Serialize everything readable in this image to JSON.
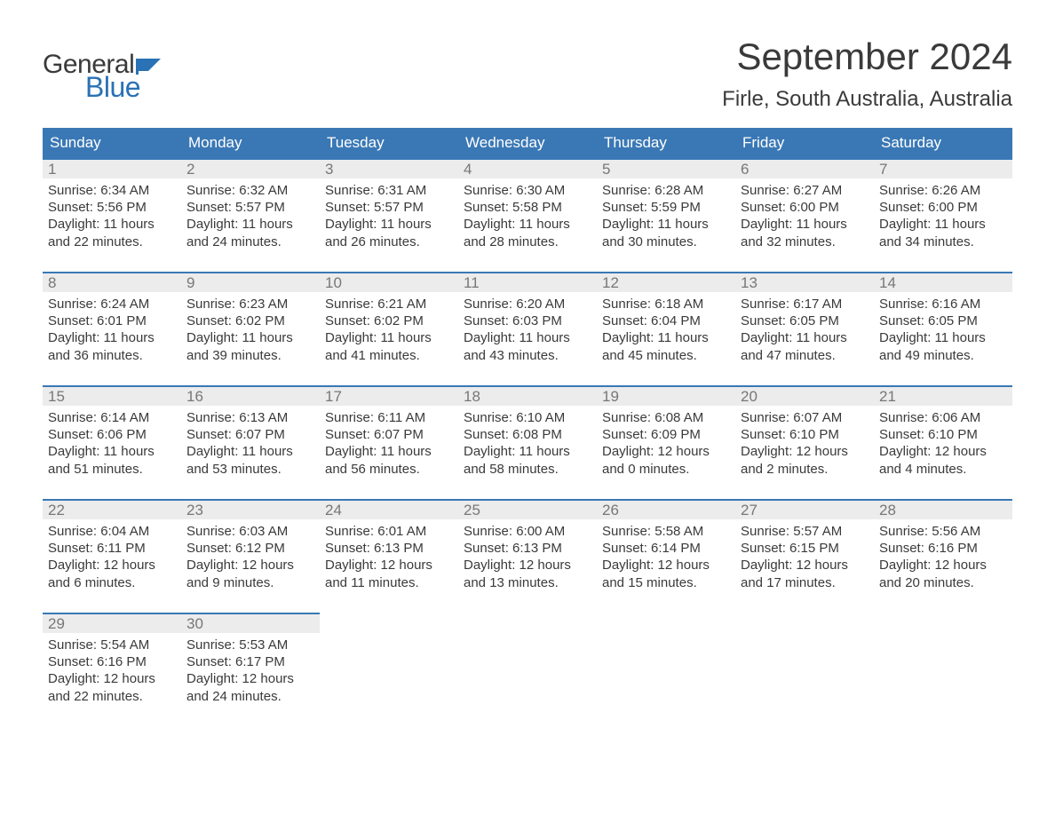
{
  "logo": {
    "word1": "General",
    "word2": "Blue",
    "flag_color": "#2a72b5"
  },
  "header": {
    "month_title": "September 2024",
    "location": "Firle, South Australia, Australia"
  },
  "colors": {
    "header_bg": "#3a78b5",
    "header_text": "#ffffff",
    "daynum_bg": "#ececec",
    "daynum_border": "#3a78b5",
    "daynum_text": "#777777",
    "body_text": "#3a3a3a",
    "page_bg": "#ffffff",
    "logo_blue": "#2a72b5"
  },
  "typography": {
    "month_fontsize_pt": 32,
    "location_fontsize_pt": 18,
    "weekday_fontsize_pt": 13,
    "daynum_fontsize_pt": 13,
    "body_fontsize_pt": 11,
    "font_family": "Arial"
  },
  "calendar": {
    "type": "table",
    "columns": [
      "Sunday",
      "Monday",
      "Tuesday",
      "Wednesday",
      "Thursday",
      "Friday",
      "Saturday"
    ],
    "weeks": [
      [
        {
          "day": "1",
          "sunrise": "Sunrise: 6:34 AM",
          "sunset": "Sunset: 5:56 PM",
          "daylight": "Daylight: 11 hours and 22 minutes."
        },
        {
          "day": "2",
          "sunrise": "Sunrise: 6:32 AM",
          "sunset": "Sunset: 5:57 PM",
          "daylight": "Daylight: 11 hours and 24 minutes."
        },
        {
          "day": "3",
          "sunrise": "Sunrise: 6:31 AM",
          "sunset": "Sunset: 5:57 PM",
          "daylight": "Daylight: 11 hours and 26 minutes."
        },
        {
          "day": "4",
          "sunrise": "Sunrise: 6:30 AM",
          "sunset": "Sunset: 5:58 PM",
          "daylight": "Daylight: 11 hours and 28 minutes."
        },
        {
          "day": "5",
          "sunrise": "Sunrise: 6:28 AM",
          "sunset": "Sunset: 5:59 PM",
          "daylight": "Daylight: 11 hours and 30 minutes."
        },
        {
          "day": "6",
          "sunrise": "Sunrise: 6:27 AM",
          "sunset": "Sunset: 6:00 PM",
          "daylight": "Daylight: 11 hours and 32 minutes."
        },
        {
          "day": "7",
          "sunrise": "Sunrise: 6:26 AM",
          "sunset": "Sunset: 6:00 PM",
          "daylight": "Daylight: 11 hours and 34 minutes."
        }
      ],
      [
        {
          "day": "8",
          "sunrise": "Sunrise: 6:24 AM",
          "sunset": "Sunset: 6:01 PM",
          "daylight": "Daylight: 11 hours and 36 minutes."
        },
        {
          "day": "9",
          "sunrise": "Sunrise: 6:23 AM",
          "sunset": "Sunset: 6:02 PM",
          "daylight": "Daylight: 11 hours and 39 minutes."
        },
        {
          "day": "10",
          "sunrise": "Sunrise: 6:21 AM",
          "sunset": "Sunset: 6:02 PM",
          "daylight": "Daylight: 11 hours and 41 minutes."
        },
        {
          "day": "11",
          "sunrise": "Sunrise: 6:20 AM",
          "sunset": "Sunset: 6:03 PM",
          "daylight": "Daylight: 11 hours and 43 minutes."
        },
        {
          "day": "12",
          "sunrise": "Sunrise: 6:18 AM",
          "sunset": "Sunset: 6:04 PM",
          "daylight": "Daylight: 11 hours and 45 minutes."
        },
        {
          "day": "13",
          "sunrise": "Sunrise: 6:17 AM",
          "sunset": "Sunset: 6:05 PM",
          "daylight": "Daylight: 11 hours and 47 minutes."
        },
        {
          "day": "14",
          "sunrise": "Sunrise: 6:16 AM",
          "sunset": "Sunset: 6:05 PM",
          "daylight": "Daylight: 11 hours and 49 minutes."
        }
      ],
      [
        {
          "day": "15",
          "sunrise": "Sunrise: 6:14 AM",
          "sunset": "Sunset: 6:06 PM",
          "daylight": "Daylight: 11 hours and 51 minutes."
        },
        {
          "day": "16",
          "sunrise": "Sunrise: 6:13 AM",
          "sunset": "Sunset: 6:07 PM",
          "daylight": "Daylight: 11 hours and 53 minutes."
        },
        {
          "day": "17",
          "sunrise": "Sunrise: 6:11 AM",
          "sunset": "Sunset: 6:07 PM",
          "daylight": "Daylight: 11 hours and 56 minutes."
        },
        {
          "day": "18",
          "sunrise": "Sunrise: 6:10 AM",
          "sunset": "Sunset: 6:08 PM",
          "daylight": "Daylight: 11 hours and 58 minutes."
        },
        {
          "day": "19",
          "sunrise": "Sunrise: 6:08 AM",
          "sunset": "Sunset: 6:09 PM",
          "daylight": "Daylight: 12 hours and 0 minutes."
        },
        {
          "day": "20",
          "sunrise": "Sunrise: 6:07 AM",
          "sunset": "Sunset: 6:10 PM",
          "daylight": "Daylight: 12 hours and 2 minutes."
        },
        {
          "day": "21",
          "sunrise": "Sunrise: 6:06 AM",
          "sunset": "Sunset: 6:10 PM",
          "daylight": "Daylight: 12 hours and 4 minutes."
        }
      ],
      [
        {
          "day": "22",
          "sunrise": "Sunrise: 6:04 AM",
          "sunset": "Sunset: 6:11 PM",
          "daylight": "Daylight: 12 hours and 6 minutes."
        },
        {
          "day": "23",
          "sunrise": "Sunrise: 6:03 AM",
          "sunset": "Sunset: 6:12 PM",
          "daylight": "Daylight: 12 hours and 9 minutes."
        },
        {
          "day": "24",
          "sunrise": "Sunrise: 6:01 AM",
          "sunset": "Sunset: 6:13 PM",
          "daylight": "Daylight: 12 hours and 11 minutes."
        },
        {
          "day": "25",
          "sunrise": "Sunrise: 6:00 AM",
          "sunset": "Sunset: 6:13 PM",
          "daylight": "Daylight: 12 hours and 13 minutes."
        },
        {
          "day": "26",
          "sunrise": "Sunrise: 5:58 AM",
          "sunset": "Sunset: 6:14 PM",
          "daylight": "Daylight: 12 hours and 15 minutes."
        },
        {
          "day": "27",
          "sunrise": "Sunrise: 5:57 AM",
          "sunset": "Sunset: 6:15 PM",
          "daylight": "Daylight: 12 hours and 17 minutes."
        },
        {
          "day": "28",
          "sunrise": "Sunrise: 5:56 AM",
          "sunset": "Sunset: 6:16 PM",
          "daylight": "Daylight: 12 hours and 20 minutes."
        }
      ],
      [
        {
          "day": "29",
          "sunrise": "Sunrise: 5:54 AM",
          "sunset": "Sunset: 6:16 PM",
          "daylight": "Daylight: 12 hours and 22 minutes."
        },
        {
          "day": "30",
          "sunrise": "Sunrise: 5:53 AM",
          "sunset": "Sunset: 6:17 PM",
          "daylight": "Daylight: 12 hours and 24 minutes."
        },
        {
          "day": "",
          "sunrise": "",
          "sunset": "",
          "daylight": ""
        },
        {
          "day": "",
          "sunrise": "",
          "sunset": "",
          "daylight": ""
        },
        {
          "day": "",
          "sunrise": "",
          "sunset": "",
          "daylight": ""
        },
        {
          "day": "",
          "sunrise": "",
          "sunset": "",
          "daylight": ""
        },
        {
          "day": "",
          "sunrise": "",
          "sunset": "",
          "daylight": ""
        }
      ]
    ]
  }
}
